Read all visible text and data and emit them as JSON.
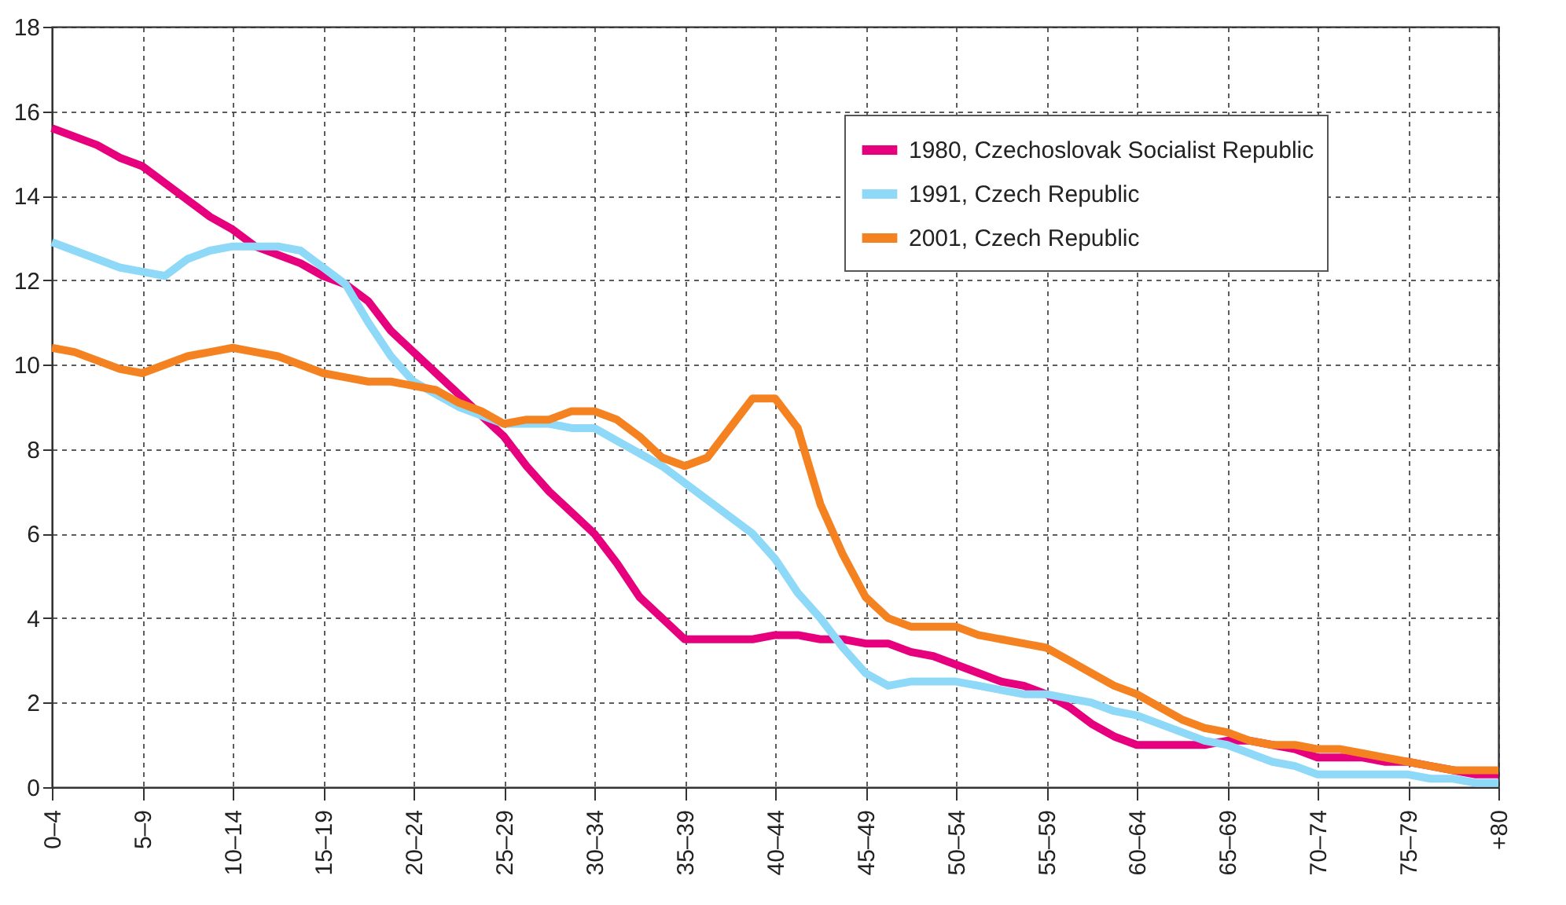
{
  "chart_data": {
    "type": "line",
    "categories": [
      "0–4",
      null,
      null,
      null,
      "5–9",
      null,
      null,
      null,
      "10–14",
      null,
      null,
      null,
      "15–19",
      null,
      null,
      null,
      "20–24",
      null,
      null,
      null,
      "25–29",
      null,
      null,
      null,
      "30–34",
      null,
      null,
      null,
      "35–39",
      null,
      null,
      null,
      "40–44",
      null,
      null,
      null,
      "45–49",
      null,
      null,
      null,
      "50–54",
      null,
      null,
      null,
      "55–59",
      null,
      null,
      null,
      "60–64",
      null,
      null,
      null,
      "65–69",
      null,
      null,
      null,
      "70–74",
      null,
      null,
      null,
      "75–79",
      null,
      null,
      null,
      "+80"
    ],
    "ylim": [
      0,
      18
    ],
    "yticks": [
      0,
      2,
      4,
      6,
      8,
      10,
      12,
      14,
      16,
      18
    ],
    "grid": true,
    "legend": "top right",
    "series": [
      {
        "name": "1980, Czechoslovak Socialist Republic",
        "color": "#e6007e",
        "values": [
          15.6,
          15.4,
          15.2,
          14.9,
          14.7,
          14.3,
          13.9,
          13.5,
          13.2,
          12.8,
          12.6,
          12.4,
          12.1,
          11.9,
          11.5,
          10.8,
          10.3,
          9.8,
          9.3,
          8.8,
          8.3,
          7.6,
          7.0,
          6.5,
          6.0,
          5.3,
          4.5,
          4.0,
          3.5,
          3.5,
          3.5,
          3.5,
          3.6,
          3.6,
          3.5,
          3.5,
          3.4,
          3.4,
          3.2,
          3.1,
          2.9,
          2.7,
          2.5,
          2.4,
          2.2,
          1.9,
          1.5,
          1.2,
          1.0,
          1.0,
          1.0,
          1.0,
          1.1,
          1.1,
          1.0,
          0.9,
          0.7,
          0.7,
          0.7,
          0.6,
          0.6,
          0.5,
          0.4,
          0.3,
          0.3
        ]
      },
      {
        "name": "1991, Czech Republic",
        "color": "#8ed8f8",
        "values": [
          12.9,
          12.7,
          12.5,
          12.3,
          12.2,
          12.1,
          12.5,
          12.7,
          12.8,
          12.8,
          12.8,
          12.7,
          12.3,
          11.9,
          11.0,
          10.2,
          9.6,
          9.3,
          9.0,
          8.8,
          8.6,
          8.6,
          8.6,
          8.5,
          8.5,
          8.2,
          7.9,
          7.6,
          7.2,
          6.8,
          6.4,
          6.0,
          5.4,
          4.6,
          4.0,
          3.3,
          2.7,
          2.4,
          2.5,
          2.5,
          2.5,
          2.4,
          2.3,
          2.2,
          2.2,
          2.1,
          2.0,
          1.8,
          1.7,
          1.5,
          1.3,
          1.1,
          1.0,
          0.8,
          0.6,
          0.5,
          0.3,
          0.3,
          0.3,
          0.3,
          0.3,
          0.2,
          0.2,
          0.1,
          0.1
        ]
      },
      {
        "name": "2001, Czech Republic",
        "color": "#f58220",
        "values": [
          10.4,
          10.3,
          10.1,
          9.9,
          9.8,
          10.0,
          10.2,
          10.3,
          10.4,
          10.3,
          10.2,
          10.0,
          9.8,
          9.7,
          9.6,
          9.6,
          9.5,
          9.4,
          9.1,
          8.9,
          8.6,
          8.7,
          8.7,
          8.9,
          8.9,
          8.7,
          8.3,
          7.8,
          7.6,
          7.8,
          8.5,
          9.2,
          9.2,
          8.5,
          6.7,
          5.5,
          4.5,
          4.0,
          3.8,
          3.8,
          3.8,
          3.6,
          3.5,
          3.4,
          3.3,
          3.0,
          2.7,
          2.4,
          2.2,
          1.9,
          1.6,
          1.4,
          1.3,
          1.1,
          1.0,
          1.0,
          0.9,
          0.9,
          0.8,
          0.7,
          0.6,
          0.5,
          0.4,
          0.4,
          0.4
        ]
      }
    ]
  }
}
